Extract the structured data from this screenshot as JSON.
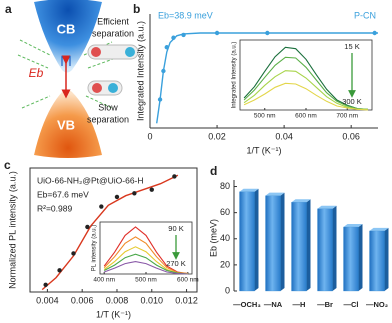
{
  "panel_labels": [
    "a",
    "b",
    "c",
    "d"
  ],
  "diagram": {
    "cb": "CB",
    "vb": "VB",
    "eb": "Eb",
    "efficient": [
      "Efficient",
      "separation"
    ],
    "slow": [
      "Slow",
      "separation"
    ]
  },
  "chart_data": [
    {
      "type": "scatter",
      "annotation": "Eb=38.9 meV",
      "label": "P-CN",
      "xlabel": "1/T (K⁻¹)",
      "ylabel": "Integrated Intensity (a.u.)",
      "x": [
        0.003,
        0.004,
        0.005,
        0.007,
        0.01,
        0.02,
        0.035,
        0.067
      ],
      "values": [
        0.3,
        0.6,
        0.85,
        0.95,
        0.98,
        1.0,
        1.0,
        1.0
      ],
      "color": "#3aa0dc",
      "fit": {
        "x": [
          0.002,
          0.003,
          0.004,
          0.005,
          0.006,
          0.008,
          0.01,
          0.015,
          0.02,
          0.04,
          0.068
        ],
        "values": [
          0.05,
          0.3,
          0.6,
          0.8,
          0.9,
          0.97,
          0.99,
          1.0,
          1.0,
          1.0,
          1.0
        ]
      },
      "xlim": [
        0,
        0.068
      ],
      "xticks": [
        0,
        0.02,
        0.04,
        0.06
      ],
      "ylim": [
        0,
        1.2
      ],
      "inset": {
        "type": "line",
        "ylabel": "Integrated Intensity (a.u.)",
        "annotations": [
          "15 K",
          "300 K"
        ],
        "xlim": [
          440,
          760
        ],
        "ylim": [
          0,
          1.05
        ],
        "xticks": [
          {
            "value": 500,
            "label": "500 nm"
          },
          {
            "value": 600,
            "label": "600 nm"
          },
          {
            "value": 700,
            "label": "700 nm"
          }
        ],
        "x": [
          450,
          475,
          500,
          525,
          550,
          575,
          600,
          625,
          650,
          675,
          700,
          725,
          750
        ],
        "series": [
          {
            "color": "#1a6f3c",
            "values": [
              0.18,
              0.35,
              0.58,
              0.8,
              0.94,
              0.92,
              0.76,
              0.53,
              0.31,
              0.15,
              0.07,
              0.02,
              0.01
            ]
          },
          {
            "color": "#5db04a",
            "values": [
              0.15,
              0.3,
              0.49,
              0.67,
              0.79,
              0.78,
              0.64,
              0.45,
              0.26,
              0.13,
              0.06,
              0.02,
              0.01
            ]
          },
          {
            "color": "#a8d44a",
            "values": [
              0.11,
              0.22,
              0.37,
              0.5,
              0.59,
              0.58,
              0.48,
              0.34,
              0.2,
              0.1,
              0.04,
              0.01,
              0.01
            ]
          },
          {
            "color": "#e3d64a",
            "values": [
              0.08,
              0.15,
              0.24,
              0.34,
              0.4,
              0.39,
              0.32,
              0.22,
              0.13,
              0.06,
              0.03,
              0.01,
              0.0
            ]
          }
        ]
      }
    },
    {
      "type": "scatter",
      "annotations": [
        "UiO-66-NH₂@Pt@UiO-66-H",
        "Eb=67.6 meV",
        "R²=0.989"
      ],
      "xlabel": "1/T (K⁻¹)",
      "ylabel": "Normalized PL intensity (a.u.)",
      "x": [
        0.0039,
        0.0047,
        0.0055,
        0.0063,
        0.0071,
        0.008,
        0.009,
        0.01,
        0.0113
      ],
      "values": [
        0.06,
        0.18,
        0.32,
        0.54,
        0.71,
        0.79,
        0.82,
        0.85,
        0.96
      ],
      "color": "#222222",
      "fit": {
        "x": [
          0.0037,
          0.0045,
          0.0055,
          0.0065,
          0.0075,
          0.0085,
          0.0095,
          0.0105,
          0.0115
        ],
        "values": [
          0.02,
          0.12,
          0.3,
          0.55,
          0.72,
          0.8,
          0.85,
          0.9,
          0.97
        ],
        "color": "#d9381e"
      },
      "xlim": [
        0.003,
        0.0126
      ],
      "xticks": [
        0.004,
        0.006,
        0.008,
        {
          "value": 0.01,
          "label": "0.010"
        },
        0.012
      ],
      "ylim": [
        0,
        1.03
      ],
      "inset": {
        "type": "line",
        "ylabel": "PL intensity (a.u.)",
        "annotations": [
          "90 K",
          "270 K"
        ],
        "xlim": [
          390,
          610
        ],
        "ylim": [
          0,
          1.05
        ],
        "xticks": [
          {
            "value": 400,
            "label": "400 nm"
          },
          {
            "value": 500,
            "label": "500 nm"
          },
          {
            "value": 600,
            "label": "600 nm"
          }
        ],
        "x": [
          400,
          425,
          450,
          475,
          500,
          525,
          550,
          575,
          600
        ],
        "series": [
          {
            "color": "#e0302a",
            "values": [
              0.16,
              0.44,
              0.78,
              0.95,
              0.78,
              0.44,
              0.16,
              0.04,
              0.01
            ]
          },
          {
            "color": "#f08a2a",
            "values": [
              0.13,
              0.35,
              0.62,
              0.75,
              0.62,
              0.35,
              0.13,
              0.03,
              0.01
            ]
          },
          {
            "color": "#e6c92e",
            "values": [
              0.09,
              0.25,
              0.45,
              0.55,
              0.45,
              0.25,
              0.09,
              0.02,
              0.01
            ]
          },
          {
            "color": "#4aa84a",
            "values": [
              0.07,
              0.18,
              0.33,
              0.4,
              0.33,
              0.18,
              0.07,
              0.02,
              0.0
            ]
          },
          {
            "color": "#8a5aa8",
            "values": [
              0.04,
              0.12,
              0.21,
              0.25,
              0.21,
              0.12,
              0.04,
              0.01,
              0.0
            ]
          }
        ]
      }
    },
    {
      "type": "bar",
      "ylabel": "Eb (meV)",
      "categories": [
        "—OCH₃",
        "—NA",
        "—H",
        "—Br",
        "—Cl",
        "—NO₂"
      ],
      "values": [
        76,
        73,
        68,
        63,
        49,
        46
      ],
      "color": "#3b8fd4",
      "ylim": [
        0,
        85
      ],
      "yticks": [
        0,
        20,
        40,
        60,
        80
      ]
    }
  ]
}
